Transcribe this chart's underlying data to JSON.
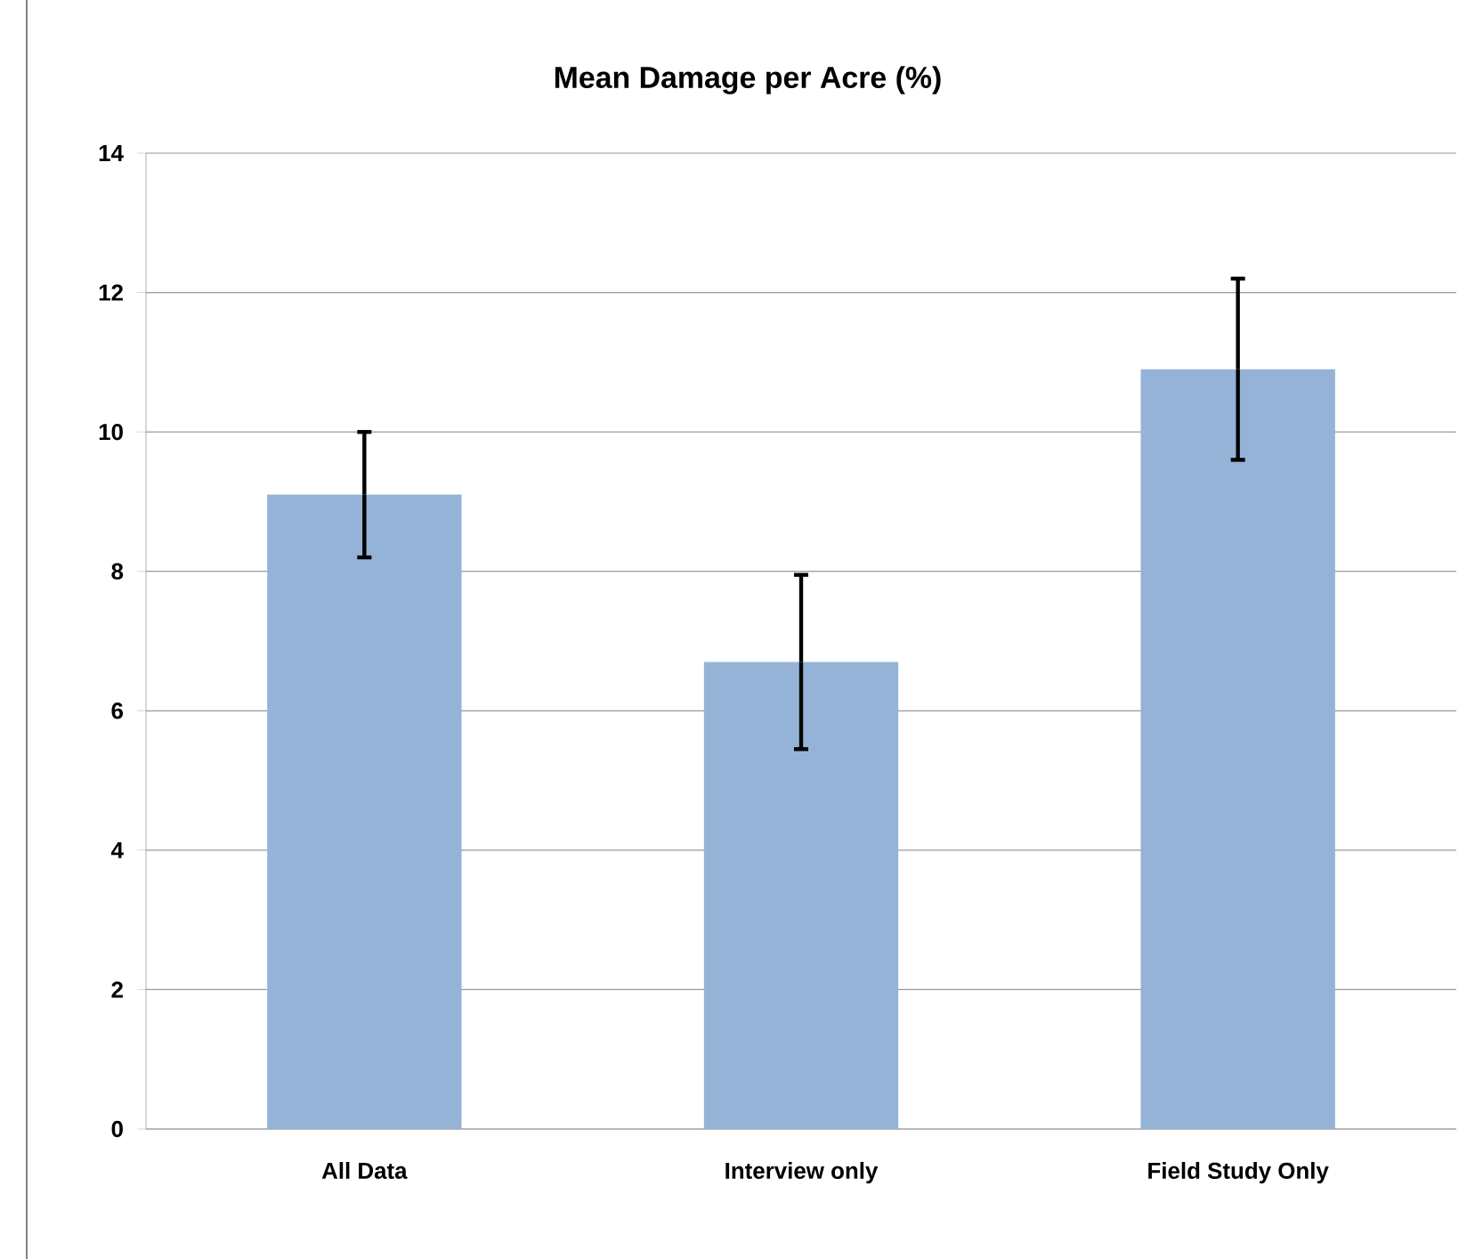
{
  "chart_data": {
    "type": "bar",
    "title": "Mean Damage per Acre (%)",
    "categories": [
      "All Data",
      "Interview only",
      "Field Study Only"
    ],
    "values": [
      9.1,
      6.7,
      10.9
    ],
    "errors": [
      0.9,
      1.25,
      1.3
    ],
    "color": "#95b3d7",
    "ylim": [
      0,
      14
    ],
    "yticks": [
      0,
      2,
      4,
      6,
      8,
      10,
      12,
      14
    ],
    "grid": "y"
  }
}
